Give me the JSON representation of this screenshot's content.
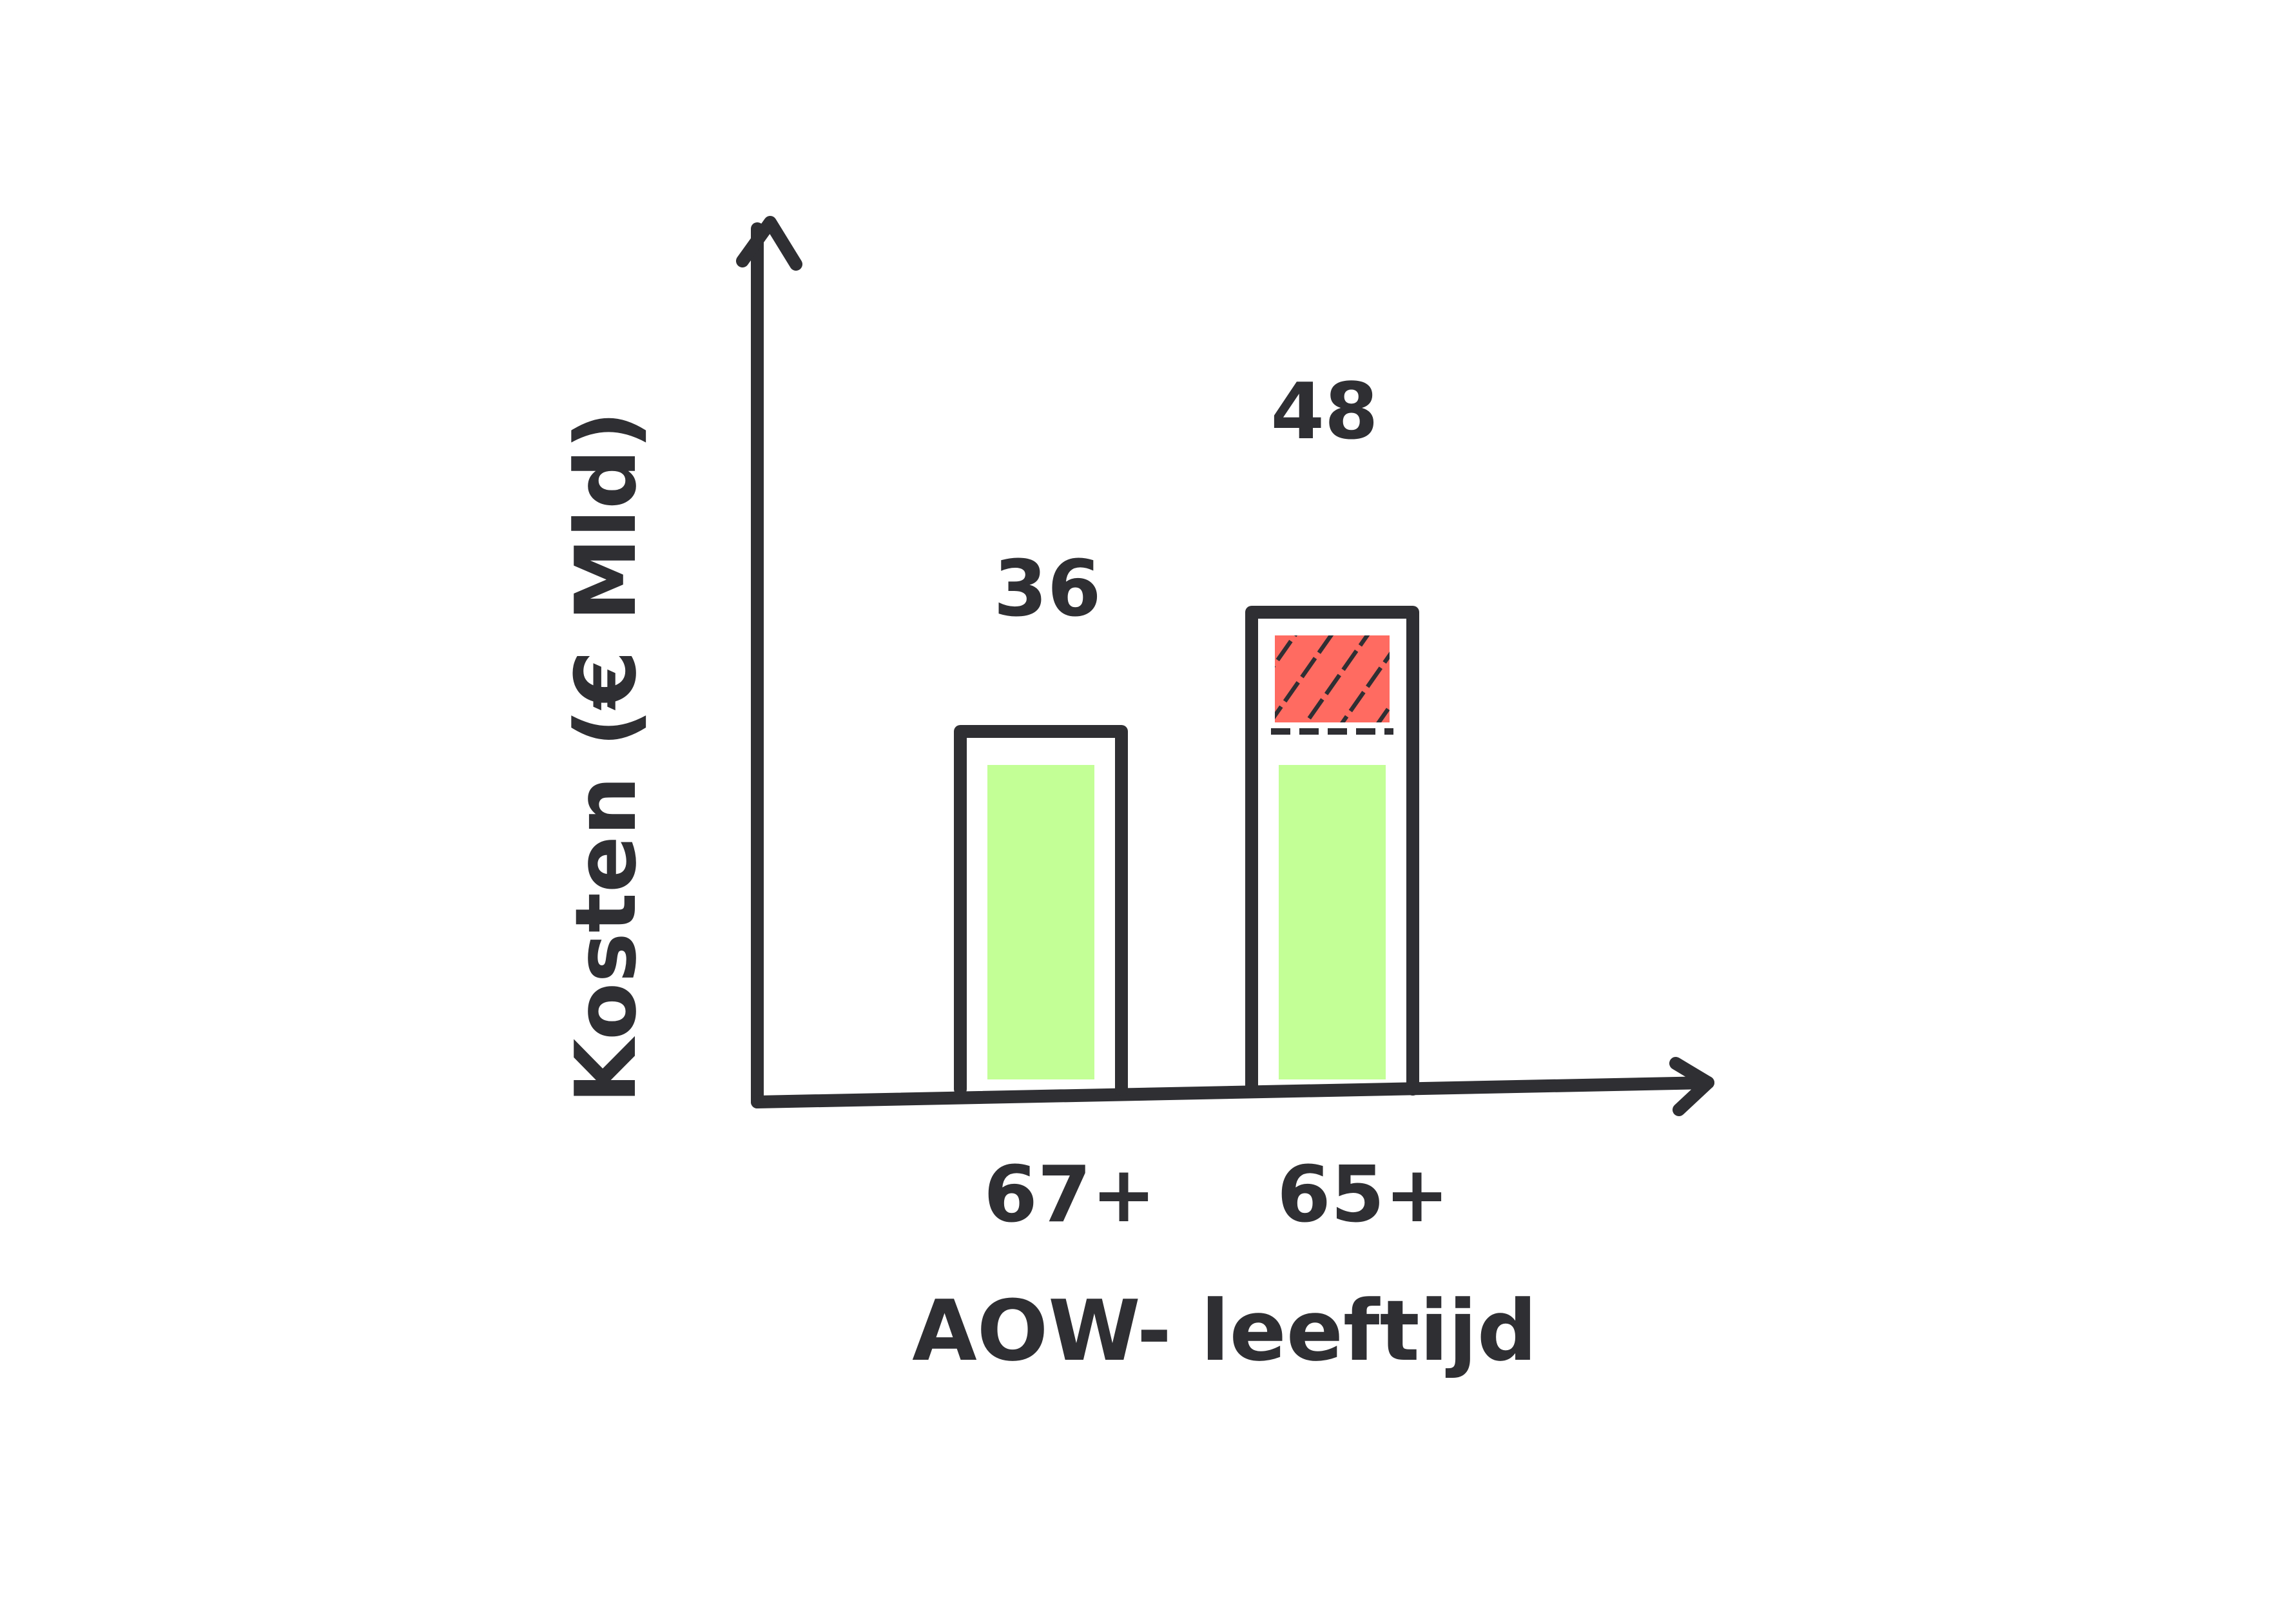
{
  "chart_data": {
    "type": "bar",
    "categories": [
      "67+",
      "65+"
    ],
    "values": [
      36,
      48
    ],
    "series": [
      {
        "values": [
          36,
          36
        ],
        "color": "#c3ff96"
      },
      {
        "values": [
          0,
          12
        ],
        "color": "#ff6b61",
        "hatched": true
      }
    ],
    "data_labels": [
      "36",
      "48"
    ],
    "xlabel": "AOW- leeftijd",
    "ylabel": "Kosten (€ Mld)",
    "ylim": [
      0,
      60
    ],
    "grid": false,
    "legend": "none"
  },
  "colors": {
    "ink": "#2f2f33",
    "green": "#c3ff96",
    "red": "#ff6b61",
    "background": "#ffffff"
  }
}
